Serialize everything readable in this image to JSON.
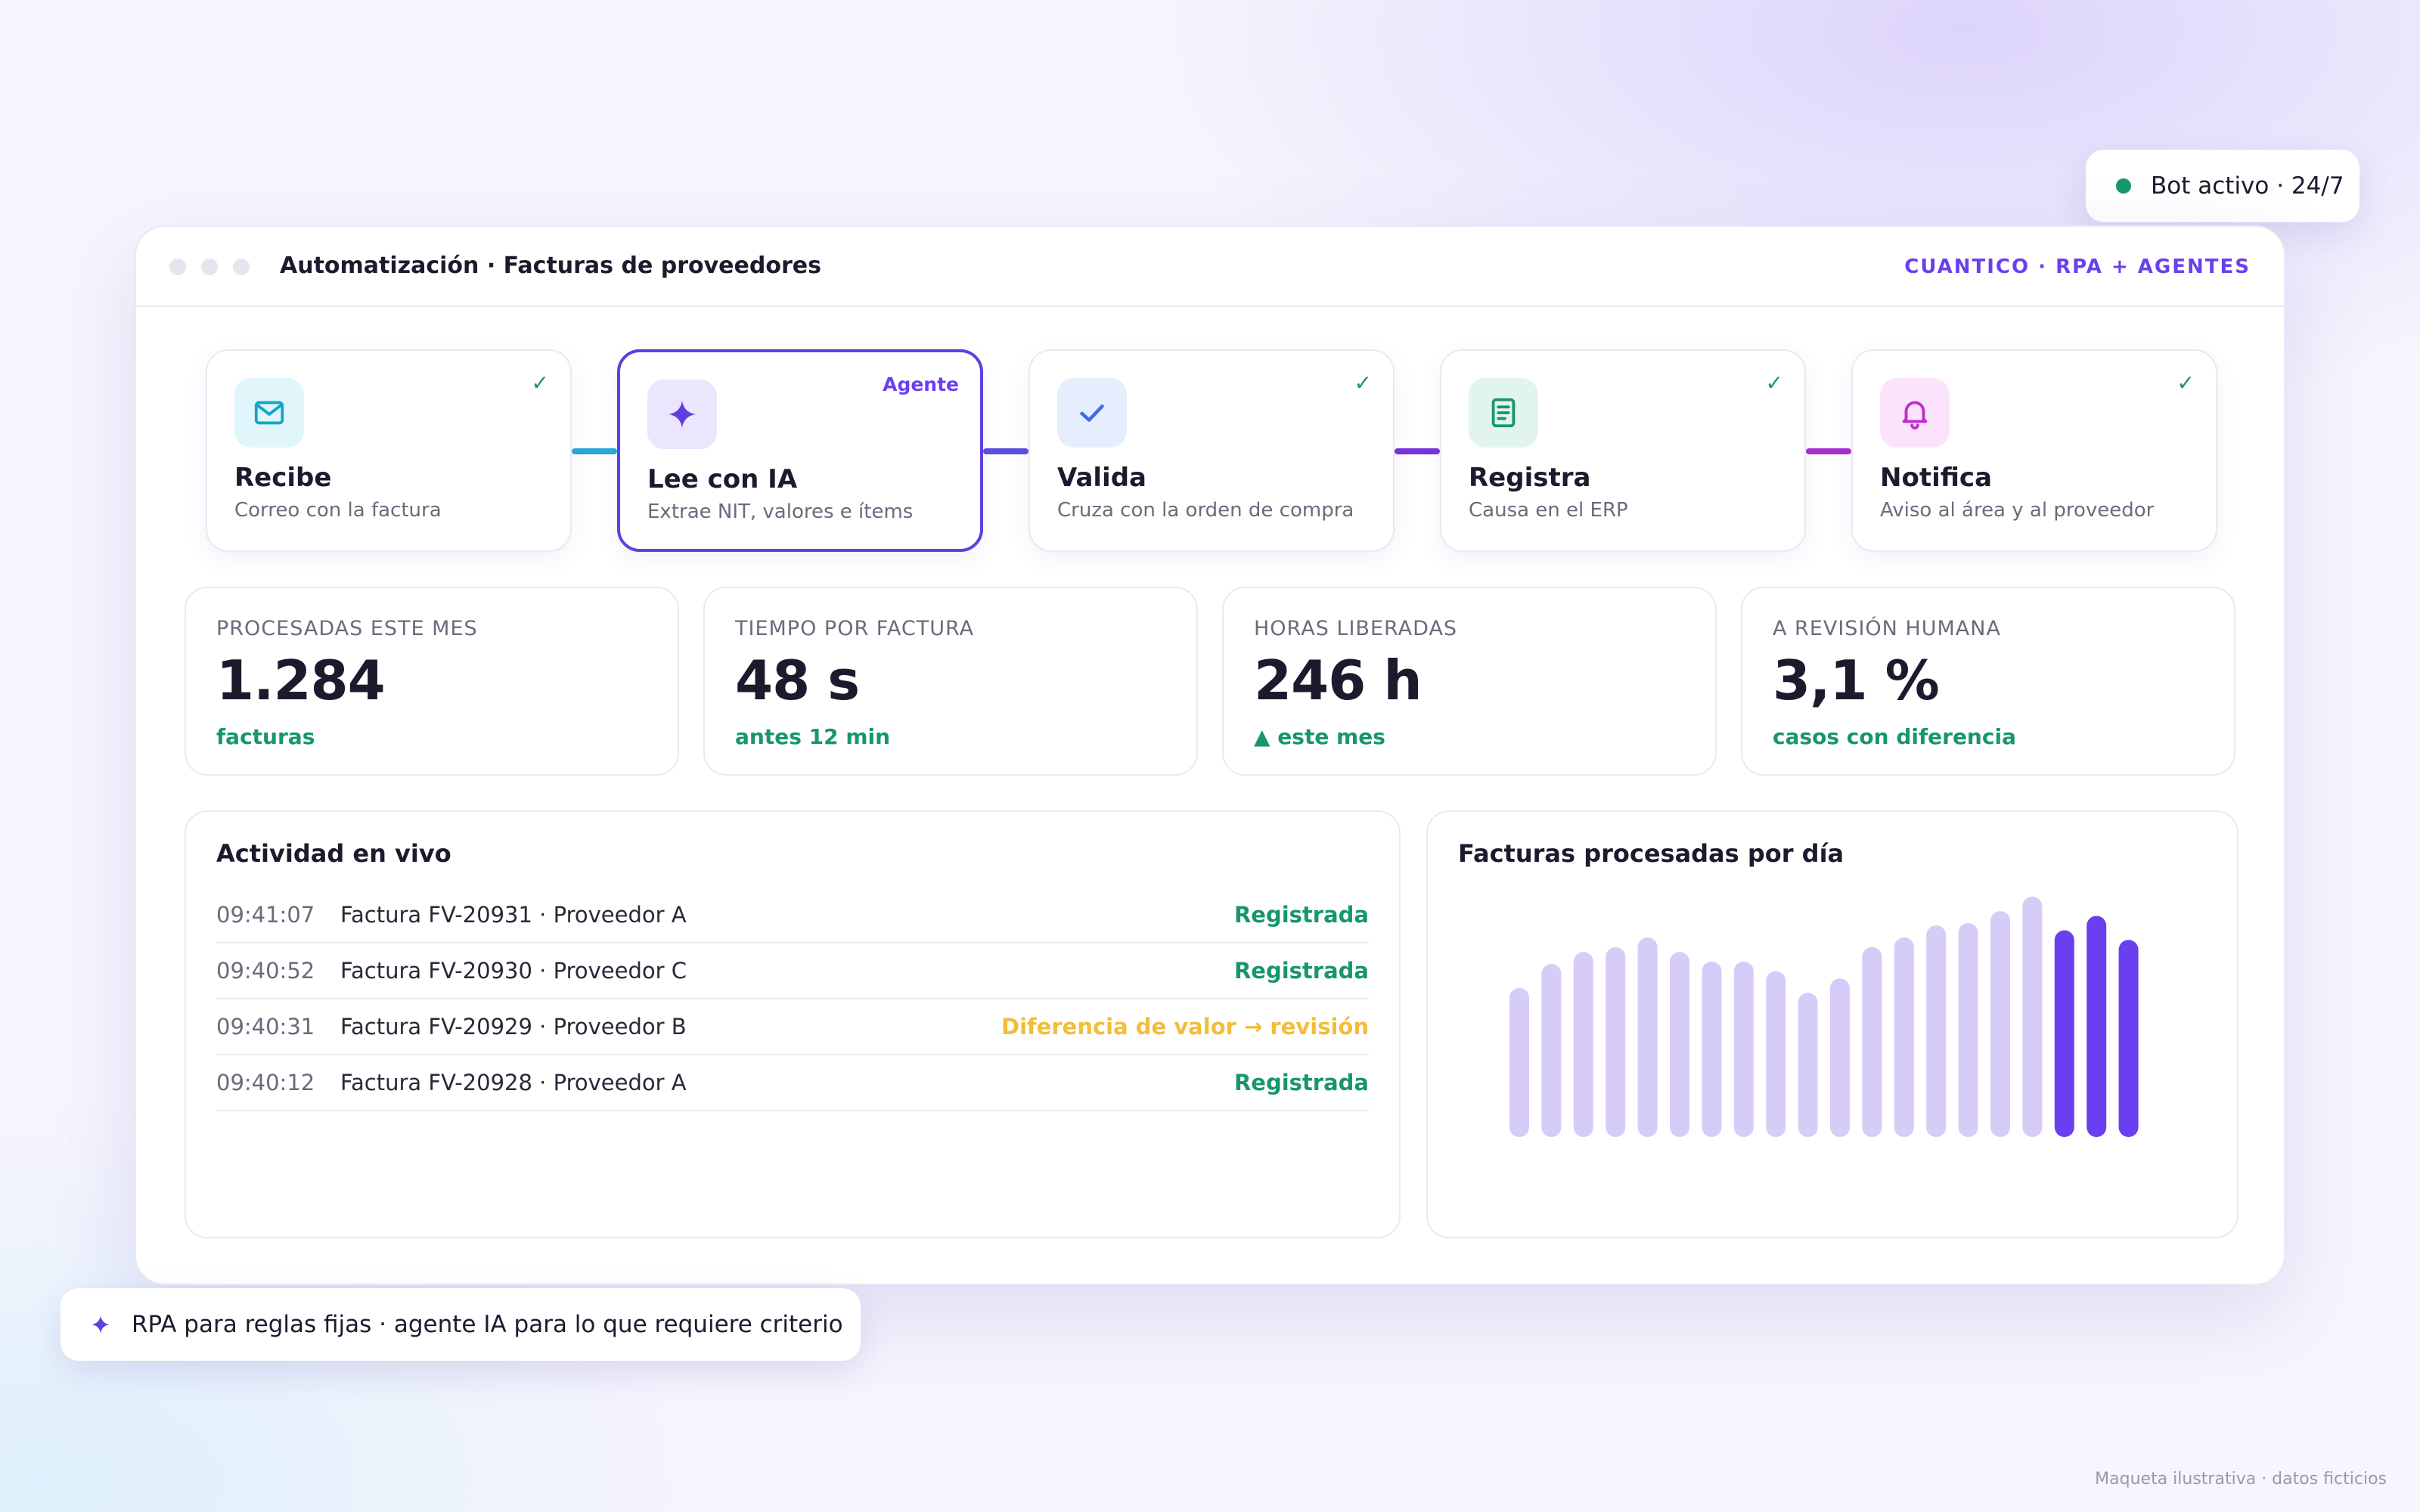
{
  "window": {
    "title": "Automatización · Facturas de proveedores",
    "brand": "CUANTICO · RPA + AGENTES"
  },
  "steps": [
    {
      "title": "Recibe",
      "desc": "Correo con la factura",
      "icon": "mail-icon",
      "check": "✓",
      "accent": "#14a4c8"
    },
    {
      "title": "Lee con IA",
      "desc": "Extrae NIT, valores e ítems",
      "icon": "sparkle-icon",
      "badge": "Agente",
      "accent": "#5e3fe0"
    },
    {
      "title": "Valida",
      "desc": "Cruza con la orden de compra",
      "icon": "check-icon",
      "check": "✓",
      "accent": "#3d6fe0"
    },
    {
      "title": "Registra",
      "desc": "Causa en el ERP",
      "icon": "document-icon",
      "check": "✓",
      "accent": "#17976a"
    },
    {
      "title": "Notifica",
      "desc": "Aviso al área y al proveedor",
      "icon": "bell-icon",
      "check": "✓",
      "accent": "#c02bd0"
    }
  ],
  "kpis": [
    {
      "label": "PROCESADAS ESTE MES",
      "value": "1.284",
      "sub": "facturas"
    },
    {
      "label": "TIEMPO POR FACTURA",
      "value": "48 s",
      "sub": "antes 12 min"
    },
    {
      "label": "HORAS LIBERADAS",
      "value": "246 h",
      "sub": "▲ este mes"
    },
    {
      "label": "A REVISIÓN HUMANA",
      "value": "3,1 %",
      "sub": "casos con diferencia"
    }
  ],
  "activity": {
    "title": "Actividad en vivo",
    "rows": [
      {
        "time": "09:41:07",
        "desc": "Factura FV-20931 · Proveedor A",
        "status": "Registrada",
        "kind": "ok"
      },
      {
        "time": "09:40:52",
        "desc": "Factura FV-20930 · Proveedor C",
        "status": "Registrada",
        "kind": "ok"
      },
      {
        "time": "09:40:31",
        "desc": "Factura FV-20929 · Proveedor B",
        "status": "Diferencia de valor → revisión",
        "kind": "warn"
      },
      {
        "time": "09:40:12",
        "desc": "Factura FV-20928 · Proveedor A",
        "status": "Registrada",
        "kind": "ok"
      }
    ]
  },
  "chart": {
    "title": "Facturas procesadas por día"
  },
  "chart_data": {
    "type": "bar",
    "title": "Facturas procesadas por día",
    "values": [
      62,
      72,
      77,
      79,
      83,
      77,
      73,
      73,
      69,
      60,
      66,
      79,
      83,
      88,
      89,
      94,
      100,
      86,
      92,
      82
    ],
    "highlighted_last": 3,
    "ylim": [
      0,
      100
    ],
    "colors": {
      "normal": "#d6ccf7",
      "highlight": "#6a3ff0"
    },
    "grid": false
  },
  "badges": {
    "bot_status": "Bot activo · 24/7",
    "tagline": "RPA para reglas fijas · agente IA para lo que requiere criterio",
    "footnote": "Maqueta ilustrativa · datos ficticios"
  }
}
